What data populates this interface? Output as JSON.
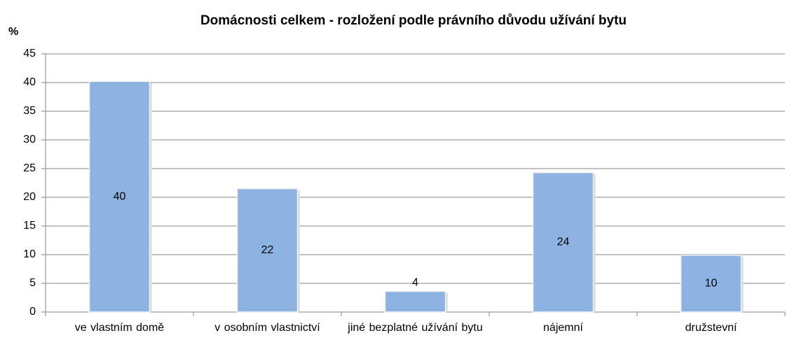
{
  "chart_data": {
    "type": "bar",
    "title": "Domácnosti  celkem - rozložení podle právního důvodu užívání bytu",
    "y_axis_label": "%",
    "categories": [
      "ve vlastním domě",
      "v osobním vlastnictví",
      "jiné bezplatné užívání bytu",
      "nájemní",
      "družstevní"
    ],
    "values": [
      40.2,
      21.5,
      3.6,
      24.3,
      9.9
    ],
    "value_labels": [
      "40",
      "22",
      "4",
      "24",
      "10"
    ],
    "color": "#8db3e2",
    "ylim": [
      0,
      45
    ],
    "yticks": [
      0,
      5,
      10,
      15,
      20,
      25,
      30,
      35,
      40,
      45
    ],
    "grid": true
  }
}
